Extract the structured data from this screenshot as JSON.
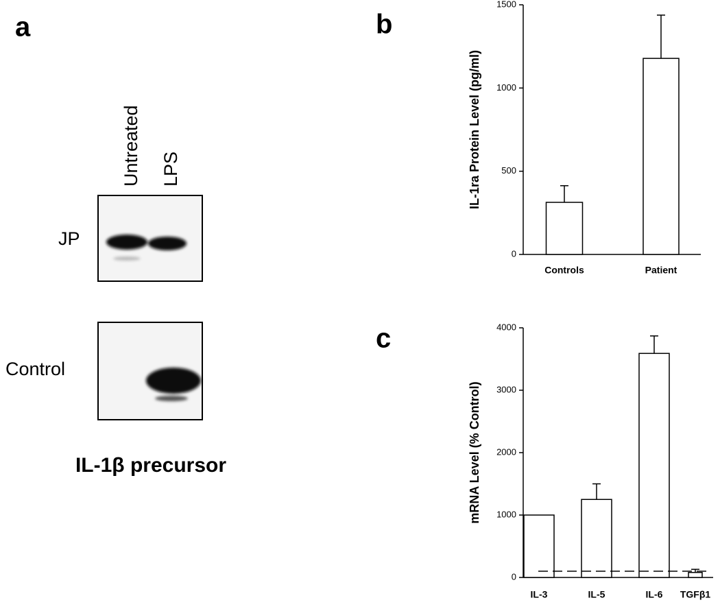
{
  "panel_a": {
    "panel_label": "a",
    "lanes": [
      "Untreated",
      "LPS"
    ],
    "rows": [
      "JP",
      "Control"
    ],
    "caption": "IL-1β precursor"
  },
  "chart_data": [
    {
      "type": "bar",
      "panel_label": "b",
      "y_label": "IL-1ra Protein Level (pg/ml)",
      "categories": [
        "Controls",
        "Patient"
      ],
      "values": [
        313,
        1178
      ],
      "errors": [
        100,
        260
      ],
      "color": "#ffffff",
      "ylim": [
        0,
        1500
      ],
      "yticks": [
        0,
        500,
        1000,
        1500
      ]
    },
    {
      "type": "bar",
      "panel_label": "c",
      "y_label": "mRNA Level (% Control)",
      "categories": [
        "IL-3",
        "IL-5",
        "IL-6",
        "TGFβ1"
      ],
      "values": [
        1000,
        1250,
        3590,
        80
      ],
      "errors": [
        0,
        250,
        280,
        50
      ],
      "color": "#ffffff",
      "ylim": [
        0,
        4000
      ],
      "yticks": [
        0,
        1000,
        2000,
        3000,
        4000
      ],
      "reference_line": 100
    }
  ]
}
